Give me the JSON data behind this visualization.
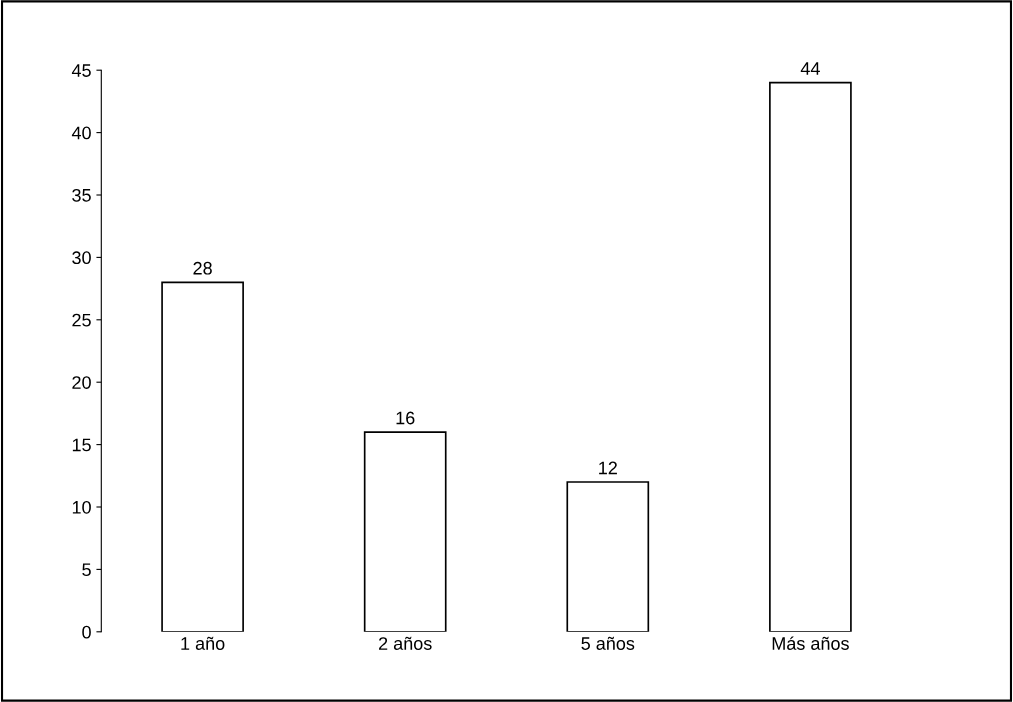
{
  "chart_data": {
    "type": "bar",
    "categories": [
      "1 año",
      "2 años",
      "5 años",
      "Más años"
    ],
    "values": [
      28,
      16,
      12,
      44
    ],
    "color": "#ffffff",
    "ylim": [
      0,
      45
    ],
    "yticks": [
      0,
      5,
      10,
      15,
      20,
      25,
      30,
      35,
      40,
      45
    ],
    "data_labels": true,
    "grid": false,
    "legend": false
  }
}
